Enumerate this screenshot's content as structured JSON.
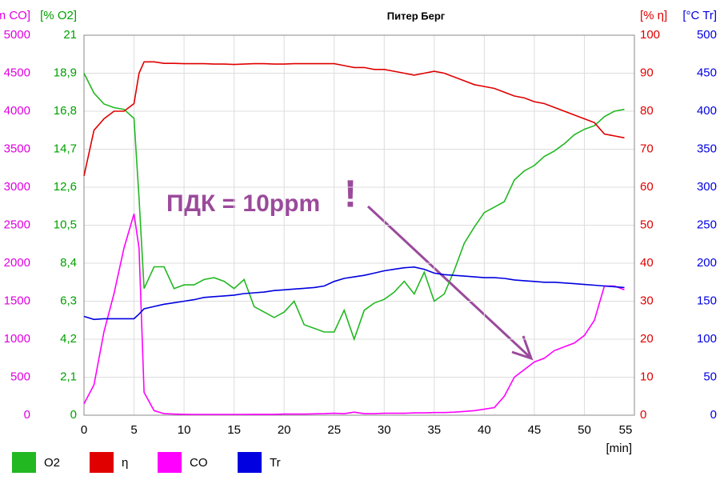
{
  "chart_data": {
    "type": "line",
    "title": "Питер Берг",
    "x_label": "[min]",
    "x": [
      0,
      1,
      2,
      3,
      4,
      5,
      5.5,
      6,
      7,
      8,
      9,
      10,
      11,
      12,
      13,
      14,
      15,
      16,
      17,
      18,
      19,
      20,
      21,
      22,
      23,
      24,
      25,
      26,
      27,
      28,
      29,
      30,
      31,
      32,
      33,
      34,
      35,
      36,
      37,
      38,
      39,
      40,
      41,
      42,
      43,
      44,
      45,
      46,
      47,
      48,
      49,
      50,
      51,
      52,
      53,
      54
    ],
    "xlim": [
      0,
      55
    ],
    "xticks": [
      0,
      5,
      10,
      15,
      20,
      25,
      30,
      35,
      40,
      45,
      50,
      55
    ],
    "grid": true,
    "y_axes": [
      {
        "label": "[ppm CO]",
        "color": "#e000e0",
        "lim": [
          0,
          5000
        ],
        "ticks": [
          0,
          500,
          1000,
          1500,
          2000,
          2500,
          3000,
          3500,
          4000,
          4500,
          5000
        ]
      },
      {
        "label": "[% O2]",
        "color": "#00a000",
        "lim": [
          0,
          21
        ],
        "ticks": [
          0,
          {
            "value": 2.1,
            "label": "2,1"
          },
          {
            "value": 4.2,
            "label": "4,2"
          },
          {
            "value": 6.3,
            "label": "6,3"
          },
          {
            "value": 8.4,
            "label": "8,4"
          },
          {
            "value": 10.5,
            "label": "10,5"
          },
          {
            "value": 12.6,
            "label": "12,6"
          },
          {
            "value": 14.7,
            "label": "14,7"
          },
          {
            "value": 16.8,
            "label": "16,8"
          },
          {
            "value": 18.9,
            "label": "18,9"
          },
          21
        ]
      },
      {
        "label": "[% η]",
        "color": "#e00000",
        "lim": [
          0,
          100
        ],
        "ticks": [
          0,
          10,
          20,
          30,
          40,
          50,
          60,
          70,
          80,
          90,
          100
        ]
      },
      {
        "label": "[°C Tr]",
        "color": "#0000e0",
        "lim": [
          0,
          500
        ],
        "ticks": [
          0,
          50,
          100,
          150,
          200,
          250,
          300,
          350,
          400,
          450,
          500
        ]
      }
    ],
    "series": [
      {
        "name": "O2",
        "color": "#22b822",
        "axis": 1,
        "values": [
          18.9,
          17.8,
          17.2,
          17.0,
          16.9,
          16.4,
          12,
          7.0,
          8.2,
          8.2,
          7.0,
          7.2,
          7.2,
          7.5,
          7.6,
          7.4,
          7.0,
          7.5,
          6.0,
          5.7,
          5.4,
          5.7,
          6.3,
          5.0,
          4.8,
          4.6,
          4.6,
          5.8,
          4.2,
          5.8,
          6.2,
          6.4,
          6.8,
          7.4,
          6.7,
          7.9,
          6.3,
          6.7,
          8.0,
          9.5,
          10.4,
          11.2,
          11.5,
          11.8,
          13.0,
          13.5,
          13.8,
          14.3,
          14.6,
          15.0,
          15.5,
          15.8,
          16.0,
          16.5,
          16.8,
          16.9
        ]
      },
      {
        "name": "η",
        "color": "#e00000",
        "axis": 2,
        "values": [
          63,
          75,
          78,
          80,
          80,
          82,
          90,
          93,
          93,
          92.6,
          92.6,
          92.5,
          92.5,
          92.5,
          92.4,
          92.4,
          92.3,
          92.4,
          92.5,
          92.5,
          92.4,
          92.4,
          92.5,
          92.5,
          92.5,
          92.5,
          92.5,
          92,
          91.5,
          91.5,
          91,
          91,
          90.5,
          90,
          89.5,
          90,
          90.5,
          90,
          89,
          88,
          87,
          86.5,
          86,
          85,
          84,
          83.5,
          82.5,
          82,
          81,
          80,
          79,
          78,
          77,
          74,
          73.5,
          73
        ]
      },
      {
        "name": "CO",
        "color": "#ff00ff",
        "axis": 0,
        "values": [
          150,
          400,
          1100,
          1600,
          2200,
          2650,
          2200,
          300,
          60,
          20,
          15,
          12,
          10,
          10,
          10,
          10,
          10,
          10,
          12,
          12,
          12,
          15,
          15,
          15,
          18,
          20,
          25,
          20,
          40,
          20,
          20,
          25,
          25,
          25,
          30,
          30,
          35,
          35,
          40,
          50,
          60,
          80,
          100,
          250,
          500,
          600,
          700,
          750,
          850,
          900,
          950,
          1050,
          1250,
          1700,
          1700,
          1650
        ]
      },
      {
        "name": "Tr",
        "color": "#0000e0",
        "axis": 3,
        "values": [
          130,
          126,
          127,
          127,
          127,
          127,
          133,
          140,
          143,
          146,
          148,
          150,
          152,
          155,
          156,
          157,
          158,
          160,
          161,
          162,
          164,
          165,
          166,
          167,
          168,
          170,
          176,
          180,
          182,
          184,
          187,
          190,
          192,
          194,
          195,
          192,
          187,
          185,
          184,
          183,
          182,
          181,
          181,
          180,
          178,
          177,
          176,
          175,
          175,
          174,
          173,
          172,
          171,
          170,
          169,
          168
        ]
      }
    ],
    "annotations": [
      "ПДК = 10ppm",
      "!"
    ]
  }
}
